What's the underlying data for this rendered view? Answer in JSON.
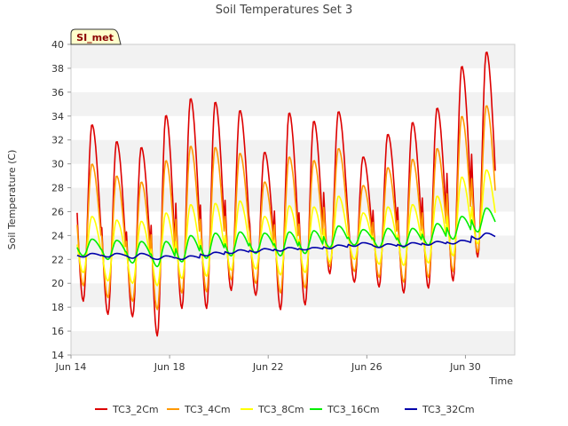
{
  "chart_data": {
    "type": "line",
    "title": "Soil Temperatures Set 3",
    "xlabel": "Time",
    "ylabel": "Soil Temperature (C)",
    "ylim": [
      14,
      40
    ],
    "yticks": [
      14,
      16,
      18,
      20,
      22,
      24,
      26,
      28,
      30,
      32,
      34,
      36,
      38,
      40
    ],
    "xlim": [
      "2024-06-14",
      "2024-07-02"
    ],
    "xticks": [
      {
        "date": "2024-06-14",
        "label": "Jun 14"
      },
      {
        "date": "2024-06-18",
        "label": "Jun 18"
      },
      {
        "date": "2024-06-22",
        "label": "Jun 22"
      },
      {
        "date": "2024-06-26",
        "label": "Jun 26"
      },
      {
        "date": "2024-06-30",
        "label": "Jun 30"
      }
    ],
    "grid": "horizontal bands",
    "legend_position": "bottom",
    "site_badge": "SI_met",
    "days": [
      "2024-06-14",
      "2024-06-15",
      "2024-06-16",
      "2024-06-17",
      "2024-06-18",
      "2024-06-19",
      "2024-06-20",
      "2024-06-21",
      "2024-06-22",
      "2024-06-23",
      "2024-06-24",
      "2024-06-25",
      "2024-06-26",
      "2024-06-27",
      "2024-06-28",
      "2024-06-29",
      "2024-06-30",
      "2024-07-01"
    ],
    "series": [
      {
        "name": "TC3_2Cm",
        "color": "#dd0000",
        "daily_max": [
          33.3,
          31.9,
          31.4,
          34.1,
          35.5,
          35.2,
          34.5,
          31.0,
          34.3,
          33.6,
          34.4,
          30.6,
          32.5,
          33.5,
          34.7,
          38.2,
          39.4,
          null
        ],
        "daily_min": [
          18.5,
          17.4,
          17.2,
          15.6,
          17.9,
          17.9,
          19.4,
          19.0,
          17.8,
          18.2,
          20.8,
          20.1,
          19.7,
          19.2,
          19.6,
          20.2,
          22.2,
          null
        ]
      },
      {
        "name": "TC3_4Cm",
        "color": "#ff9900",
        "daily_max": [
          30.0,
          29.0,
          28.5,
          30.3,
          31.5,
          31.4,
          30.9,
          28.5,
          30.6,
          30.3,
          31.3,
          28.2,
          29.7,
          30.4,
          31.3,
          34.0,
          34.9,
          null
        ],
        "daily_min": [
          19.8,
          18.8,
          18.5,
          17.8,
          19.2,
          19.3,
          20.3,
          20.0,
          19.2,
          19.6,
          21.4,
          21.0,
          20.5,
          20.1,
          20.5,
          21.0,
          22.6,
          null
        ]
      },
      {
        "name": "TC3_8Cm",
        "color": "#ffff00",
        "daily_max": [
          25.6,
          25.3,
          25.2,
          25.9,
          26.6,
          26.7,
          26.9,
          25.6,
          26.5,
          26.4,
          27.3,
          25.9,
          26.4,
          26.6,
          27.3,
          28.9,
          29.5,
          null
        ],
        "daily_min": [
          20.9,
          20.2,
          20.0,
          19.8,
          20.4,
          20.6,
          21.1,
          21.2,
          20.7,
          20.9,
          21.8,
          22.0,
          21.6,
          21.5,
          21.7,
          22.3,
          23.3,
          null
        ]
      },
      {
        "name": "TC3_16Cm",
        "color": "#00ee00",
        "daily_max": [
          23.7,
          23.6,
          23.5,
          23.5,
          24.0,
          24.2,
          24.3,
          24.2,
          24.3,
          24.4,
          24.8,
          24.5,
          24.6,
          24.6,
          25.0,
          25.6,
          26.3,
          null
        ],
        "daily_min": [
          22.3,
          22.0,
          21.7,
          21.4,
          21.8,
          22.1,
          22.3,
          22.5,
          22.3,
          22.5,
          23.0,
          23.2,
          23.0,
          23.0,
          23.2,
          23.7,
          24.3,
          null
        ]
      },
      {
        "name": "TC3_32Cm",
        "color": "#0000aa",
        "daily_max": [
          22.5,
          22.5,
          22.5,
          22.3,
          22.3,
          22.6,
          22.8,
          22.9,
          23.0,
          23.0,
          23.2,
          23.4,
          23.3,
          23.4,
          23.5,
          23.6,
          24.2,
          null
        ],
        "daily_min": [
          22.2,
          22.2,
          22.1,
          22.0,
          22.0,
          22.3,
          22.5,
          22.6,
          22.7,
          22.8,
          22.9,
          23.1,
          23.0,
          23.1,
          23.2,
          23.3,
          23.7,
          null
        ]
      }
    ]
  }
}
